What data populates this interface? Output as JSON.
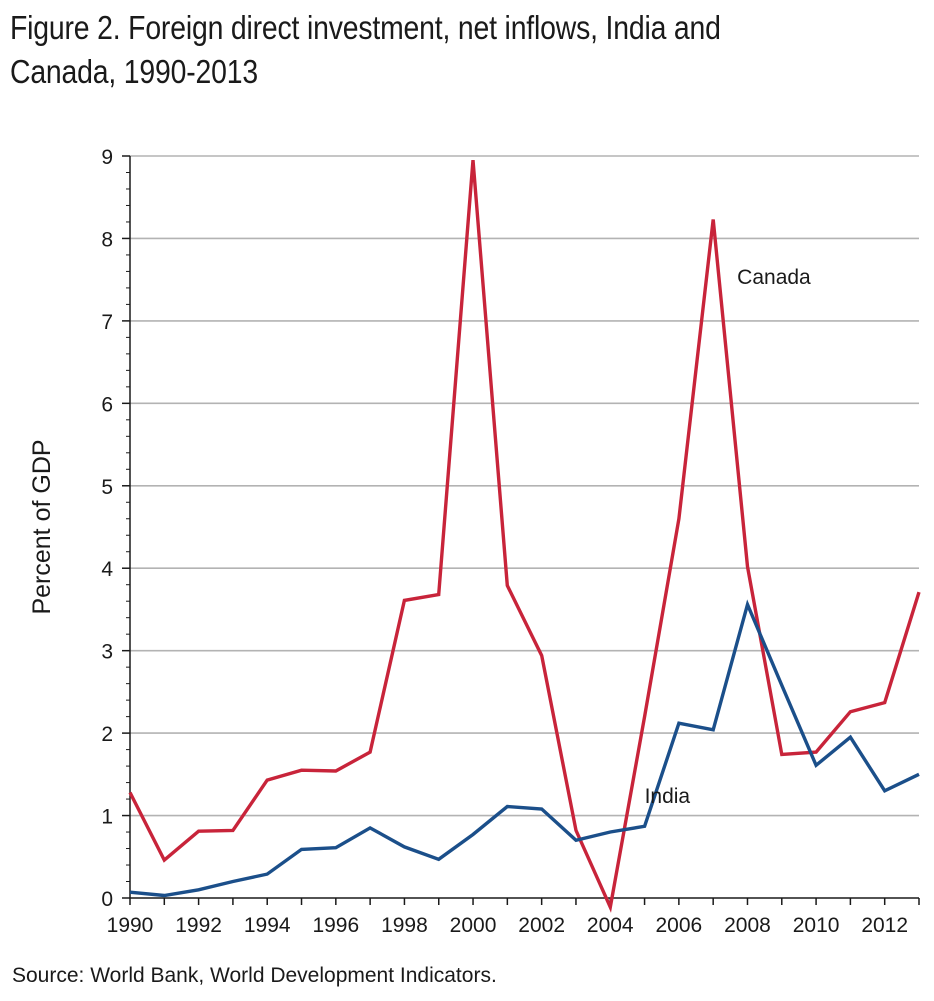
{
  "title": "Figure 2. Foreign direct investment, net inflows, India and Canada, 1990-2013",
  "source": "Source: World Bank, World Development Indicators.",
  "chart_data": {
    "type": "line",
    "title": "Figure 2. Foreign direct investment, net inflows, India and Canada, 1990-2013",
    "ylabel": "Percent of GDP",
    "xlabel": "",
    "xlim": [
      1990,
      2013
    ],
    "ylim": [
      0,
      9
    ],
    "x_ticks": [
      1990,
      1992,
      1994,
      1996,
      1998,
      2000,
      2002,
      2004,
      2006,
      2008,
      2010,
      2012
    ],
    "y_ticks": [
      0,
      1,
      2,
      3,
      4,
      5,
      6,
      7,
      8,
      9
    ],
    "grid": "horizontal",
    "x": [
      1990,
      1991,
      1992,
      1993,
      1994,
      1995,
      1996,
      1997,
      1998,
      1999,
      2000,
      2001,
      2002,
      2003,
      2004,
      2005,
      2006,
      2007,
      2008,
      2009,
      2010,
      2011,
      2012,
      2013
    ],
    "series": [
      {
        "name": "Canada",
        "color": "#c8243a",
        "values": [
          1.28,
          0.46,
          0.81,
          0.82,
          1.43,
          1.55,
          1.54,
          1.77,
          3.61,
          3.68,
          8.95,
          3.79,
          2.94,
          0.82,
          -0.11,
          2.2,
          4.6,
          8.23,
          4.02,
          1.74,
          1.77,
          2.26,
          2.37,
          3.71
        ]
      },
      {
        "name": "India",
        "color": "#1b4f8a",
        "values": [
          0.07,
          0.03,
          0.1,
          0.2,
          0.29,
          0.59,
          0.61,
          0.85,
          0.62,
          0.47,
          0.77,
          1.11,
          1.08,
          0.7,
          0.8,
          0.87,
          2.12,
          2.04,
          3.56,
          2.58,
          1.61,
          1.95,
          1.3,
          1.5
        ]
      }
    ]
  }
}
